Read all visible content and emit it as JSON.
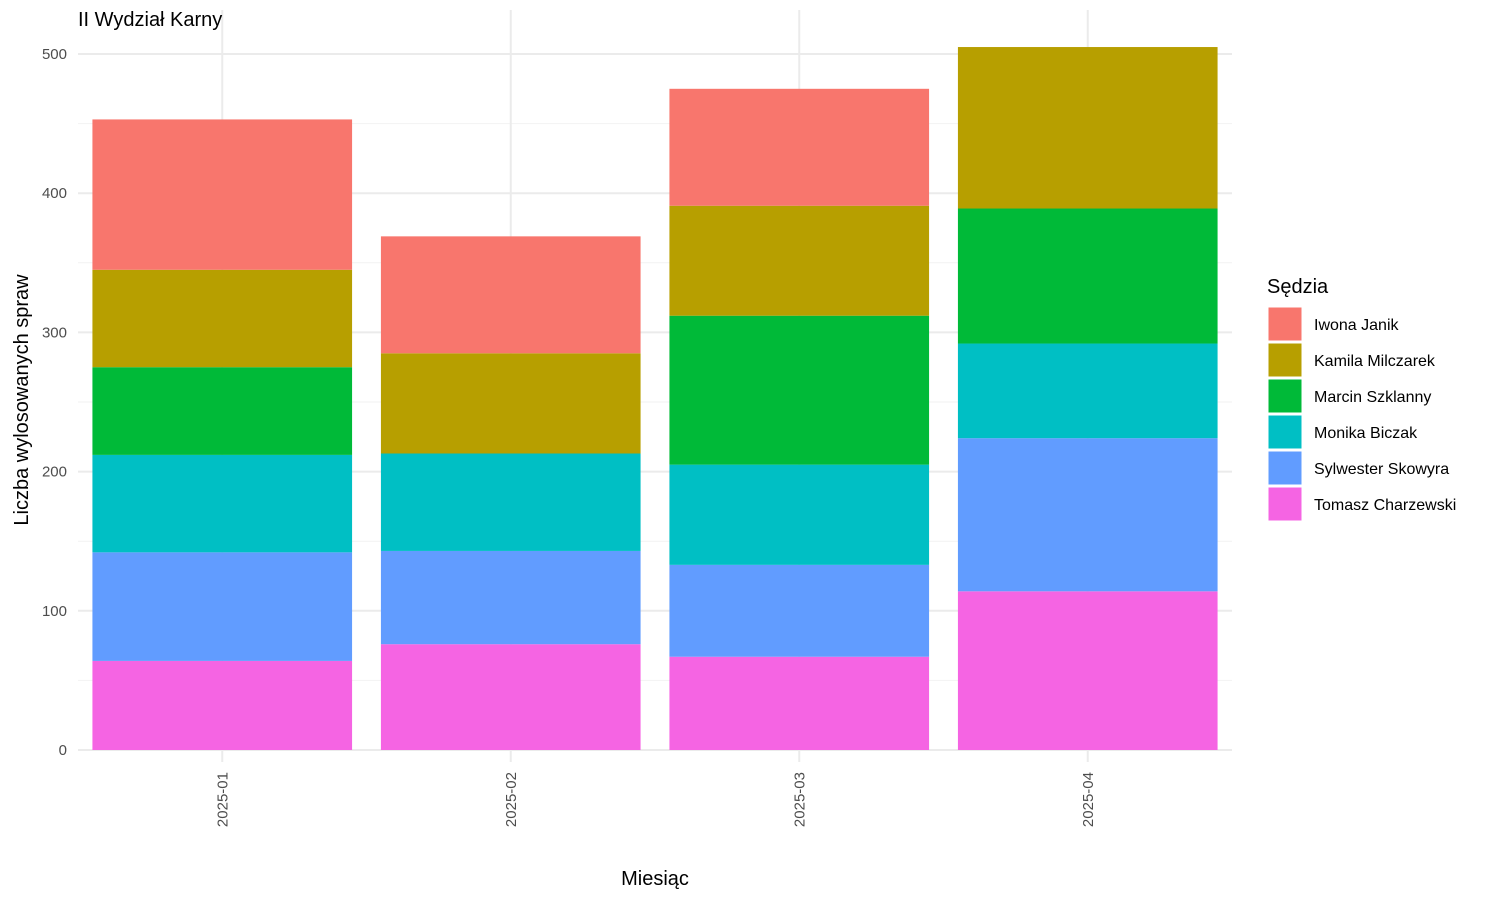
{
  "chart_data": {
    "type": "bar",
    "stacked": true,
    "title": "II Wydział Karny",
    "xlabel": "Miesiąc",
    "ylabel": "Liczba wylosowanych spraw",
    "categories": [
      "2025-01",
      "2025-02",
      "2025-03",
      "2025-04"
    ],
    "ylim": [
      0,
      520
    ],
    "yticks": [
      0,
      100,
      200,
      300,
      400,
      500
    ],
    "grid": true,
    "legend": {
      "title": "Sędzia",
      "position": "right"
    },
    "series": [
      {
        "name": "Tomasz Charzewski",
        "color": "#F564E3",
        "values": [
          64,
          76,
          67,
          114
        ]
      },
      {
        "name": "Sylwester Skowyra",
        "color": "#619CFF",
        "values": [
          78,
          67,
          66,
          110
        ]
      },
      {
        "name": "Monika Biczak",
        "color": "#00BFC4",
        "values": [
          70,
          70,
          72,
          68
        ]
      },
      {
        "name": "Marcin Szklanny",
        "color": "#00BA38",
        "values": [
          63,
          0,
          107,
          97
        ]
      },
      {
        "name": "Kamila Milczarek",
        "color": "#B79F00",
        "values": [
          70,
          72,
          79,
          116
        ]
      },
      {
        "name": "Iwona Janik",
        "color": "#F8766D",
        "values": [
          108,
          84,
          84,
          0
        ]
      }
    ],
    "legend_order": [
      "Iwona Janik",
      "Kamila Milczarek",
      "Marcin Szklanny",
      "Monika Biczak",
      "Sylwester Skowyra",
      "Tomasz Charzewski"
    ]
  }
}
